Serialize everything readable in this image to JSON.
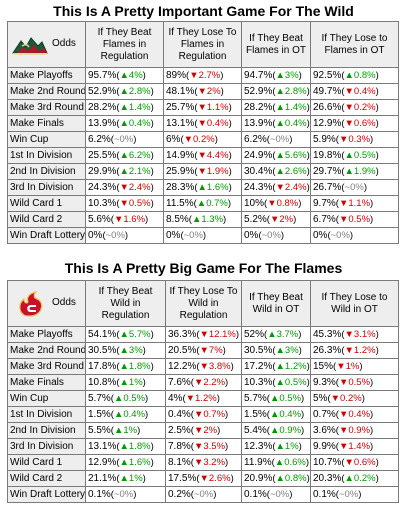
{
  "wild": {
    "title": "This Is A Pretty Important Game For The Wild",
    "logo_icon": "minnesota-wild-logo-icon",
    "headers": [
      "Odds",
      "If They Beat Flames in Regulation",
      "If They Lose To Flames in Regulation",
      "If They Beat Flames in OT",
      "If They Lose to Flames in OT"
    ],
    "rows": [
      {
        "label": "Make Playoffs",
        "cells": [
          [
            "95.7%",
            "▲4%",
            "up"
          ],
          [
            "89%",
            "▼2.7%",
            "down"
          ],
          [
            "94.7%",
            "▲3%",
            "up"
          ],
          [
            "92.5%",
            "▲0.8%",
            "up"
          ]
        ]
      },
      {
        "label": "Make 2nd Round",
        "cells": [
          [
            "52.9%",
            "▲2.8%",
            "up"
          ],
          [
            "48.1%",
            "▼2%",
            "down"
          ],
          [
            "52.9%",
            "▲2.8%",
            "up"
          ],
          [
            "49.7%",
            "▼0.4%",
            "down"
          ]
        ]
      },
      {
        "label": "Make 3rd Round",
        "cells": [
          [
            "28.2%",
            "▲1.4%",
            "up"
          ],
          [
            "25.7%",
            "▼1.1%",
            "down"
          ],
          [
            "28.2%",
            "▲1.4%",
            "up"
          ],
          [
            "26.6%",
            "▼0.2%",
            "down"
          ]
        ]
      },
      {
        "label": "Make Finals",
        "cells": [
          [
            "13.9%",
            "▲0.4%",
            "up"
          ],
          [
            "13.1%",
            "▼0.4%",
            "down"
          ],
          [
            "13.9%",
            "▲0.4%",
            "up"
          ],
          [
            "12.9%",
            "▼0.6%",
            "down"
          ]
        ]
      },
      {
        "label": "Win Cup",
        "cells": [
          [
            "6.2%",
            "~0%",
            "flat"
          ],
          [
            "6%",
            "▼0.2%",
            "down"
          ],
          [
            "6.2%",
            "~0%",
            "flat"
          ],
          [
            "5.9%",
            "▼0.3%",
            "down"
          ]
        ]
      },
      {
        "label": "1st In Division",
        "cells": [
          [
            "25.5%",
            "▲6.2%",
            "up"
          ],
          [
            "14.9%",
            "▼4.4%",
            "down"
          ],
          [
            "24.9%",
            "▲5.6%",
            "up"
          ],
          [
            "19.8%",
            "▲0.5%",
            "up"
          ]
        ]
      },
      {
        "label": "2nd In Division",
        "cells": [
          [
            "29.9%",
            "▲2.1%",
            "up"
          ],
          [
            "25.9%",
            "▼1.9%",
            "down"
          ],
          [
            "30.4%",
            "▲2.6%",
            "up"
          ],
          [
            "29.7%",
            "▲1.9%",
            "up"
          ]
        ]
      },
      {
        "label": "3rd In Division",
        "cells": [
          [
            "24.3%",
            "▼2.4%",
            "down"
          ],
          [
            "28.3%",
            "▲1.6%",
            "up"
          ],
          [
            "24.3%",
            "▼2.4%",
            "down"
          ],
          [
            "26.7%",
            "~0%",
            "flat"
          ]
        ]
      },
      {
        "label": "Wild Card 1",
        "cells": [
          [
            "10.3%",
            "▼0.5%",
            "down"
          ],
          [
            "11.5%",
            "▲0.7%",
            "up"
          ],
          [
            "10%",
            "▼0.8%",
            "down"
          ],
          [
            "9.7%",
            "▼1.1%",
            "down"
          ]
        ]
      },
      {
        "label": "Wild Card 2",
        "cells": [
          [
            "5.6%",
            "▼1.6%",
            "down"
          ],
          [
            "8.5%",
            "▲1.3%",
            "up"
          ],
          [
            "5.2%",
            "▼2%",
            "down"
          ],
          [
            "6.7%",
            "▼0.5%",
            "down"
          ]
        ]
      },
      {
        "label": "Win Draft Lottery",
        "cells": [
          [
            "0%",
            "~0%",
            "flat"
          ],
          [
            "0%",
            "~0%",
            "flat"
          ],
          [
            "0%",
            "~0%",
            "flat"
          ],
          [
            "0%",
            "~0%",
            "flat"
          ]
        ]
      }
    ]
  },
  "flames": {
    "title": "This Is A Pretty Big Game For The Flames",
    "logo_icon": "calgary-flames-logo-icon",
    "headers": [
      "Odds",
      "If They Beat Wild in Regulation",
      "If They Lose To Wild in Regulation",
      "If They Beat Wild in OT",
      "If They Lose to Wild in OT"
    ],
    "rows": [
      {
        "label": "Make Playoffs",
        "cells": [
          [
            "54.1%",
            "▲5.7%",
            "up"
          ],
          [
            "36.3%",
            "▼12.1%",
            "down"
          ],
          [
            "52%",
            "▲3.7%",
            "up"
          ],
          [
            "45.3%",
            "▼3.1%",
            "down"
          ]
        ]
      },
      {
        "label": "Make 2nd Round",
        "cells": [
          [
            "30.5%",
            "▲3%",
            "up"
          ],
          [
            "20.5%",
            "▼7%",
            "down"
          ],
          [
            "30.5%",
            "▲3%",
            "up"
          ],
          [
            "26.3%",
            "▼1.2%",
            "down"
          ]
        ]
      },
      {
        "label": "Make 3rd Round",
        "cells": [
          [
            "17.8%",
            "▲1.8%",
            "up"
          ],
          [
            "12.2%",
            "▼3.8%",
            "down"
          ],
          [
            "17.2%",
            "▲1.2%",
            "up"
          ],
          [
            "15%",
            "▼1%",
            "down"
          ]
        ]
      },
      {
        "label": "Make Finals",
        "cells": [
          [
            "10.8%",
            "▲1%",
            "up"
          ],
          [
            "7.6%",
            "▼2.2%",
            "down"
          ],
          [
            "10.3%",
            "▲0.5%",
            "up"
          ],
          [
            "9.3%",
            "▼0.5%",
            "down"
          ]
        ]
      },
      {
        "label": "Win Cup",
        "cells": [
          [
            "5.7%",
            "▲0.5%",
            "up"
          ],
          [
            "4%",
            "▼1.2%",
            "down"
          ],
          [
            "5.7%",
            "▲0.5%",
            "up"
          ],
          [
            "5%",
            "▼0.2%",
            "down"
          ]
        ]
      },
      {
        "label": "1st In Division",
        "cells": [
          [
            "1.5%",
            "▲0.4%",
            "up"
          ],
          [
            "0.4%",
            "▼0.7%",
            "down"
          ],
          [
            "1.5%",
            "▲0.4%",
            "up"
          ],
          [
            "0.7%",
            "▼0.4%",
            "down"
          ]
        ]
      },
      {
        "label": "2nd In Division",
        "cells": [
          [
            "5.5%",
            "▲1%",
            "up"
          ],
          [
            "2.5%",
            "▼2%",
            "down"
          ],
          [
            "5.4%",
            "▲0.9%",
            "up"
          ],
          [
            "3.6%",
            "▼0.9%",
            "down"
          ]
        ]
      },
      {
        "label": "3rd In Division",
        "cells": [
          [
            "13.1%",
            "▲1.8%",
            "up"
          ],
          [
            "7.8%",
            "▼3.5%",
            "down"
          ],
          [
            "12.3%",
            "▲1%",
            "up"
          ],
          [
            "9.9%",
            "▼1.4%",
            "down"
          ]
        ]
      },
      {
        "label": "Wild Card 1",
        "cells": [
          [
            "12.9%",
            "▲1.6%",
            "up"
          ],
          [
            "8.1%",
            "▼3.2%",
            "down"
          ],
          [
            "11.9%",
            "▲0.6%",
            "up"
          ],
          [
            "10.7%",
            "▼0.6%",
            "down"
          ]
        ]
      },
      {
        "label": "Wild Card 2",
        "cells": [
          [
            "21.1%",
            "▲1%",
            "up"
          ],
          [
            "17.5%",
            "▼2.6%",
            "down"
          ],
          [
            "20.9%",
            "▲0.8%",
            "up"
          ],
          [
            "20.3%",
            "▲0.2%",
            "up"
          ]
        ]
      },
      {
        "label": "Win Draft Lottery",
        "cells": [
          [
            "0.1%",
            "~0%",
            "flat"
          ],
          [
            "0.2%",
            "~0%",
            "flat"
          ],
          [
            "0.1%",
            "~0%",
            "flat"
          ],
          [
            "0.1%",
            "~0%",
            "flat"
          ]
        ]
      }
    ]
  }
}
